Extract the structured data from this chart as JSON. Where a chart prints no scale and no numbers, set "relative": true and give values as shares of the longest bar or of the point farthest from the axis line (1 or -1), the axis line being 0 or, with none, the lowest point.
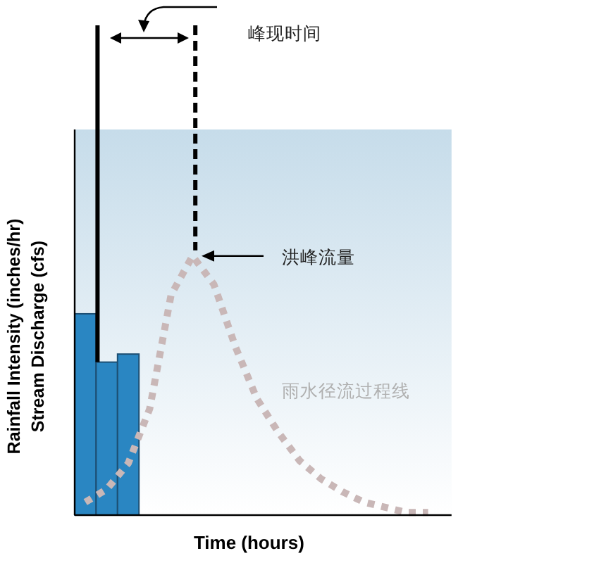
{
  "chart_data": [
    {
      "type": "bar",
      "relative": true,
      "xlabel": "Time (hours)",
      "ylabel": "Rainfall Intensity (inches/hr)\nStream Discharge (cfs)",
      "categories": [
        null,
        null,
        null
      ],
      "color": "#2a86c2",
      "values": [
        1,
        0.76,
        0.8
      ]
    },
    {
      "type": "line",
      "relative": true,
      "line_style": "dashed",
      "color": "#c9b7b7",
      "categories": [
        null,
        null,
        null,
        null,
        null,
        null,
        null,
        null,
        null,
        null,
        null,
        null,
        null,
        null,
        null,
        null,
        null
      ],
      "values": [
        0.05,
        0.1,
        0.2,
        0.41,
        0.85,
        1,
        0.89,
        0.65,
        0.45,
        0.32,
        0.21,
        0.14,
        0.09,
        0.05,
        0.03,
        0.01,
        0.01
      ],
      "annotations": [
        "峰现时间",
        "洪峰流量",
        "雨水径流过程线"
      ]
    }
  ]
}
